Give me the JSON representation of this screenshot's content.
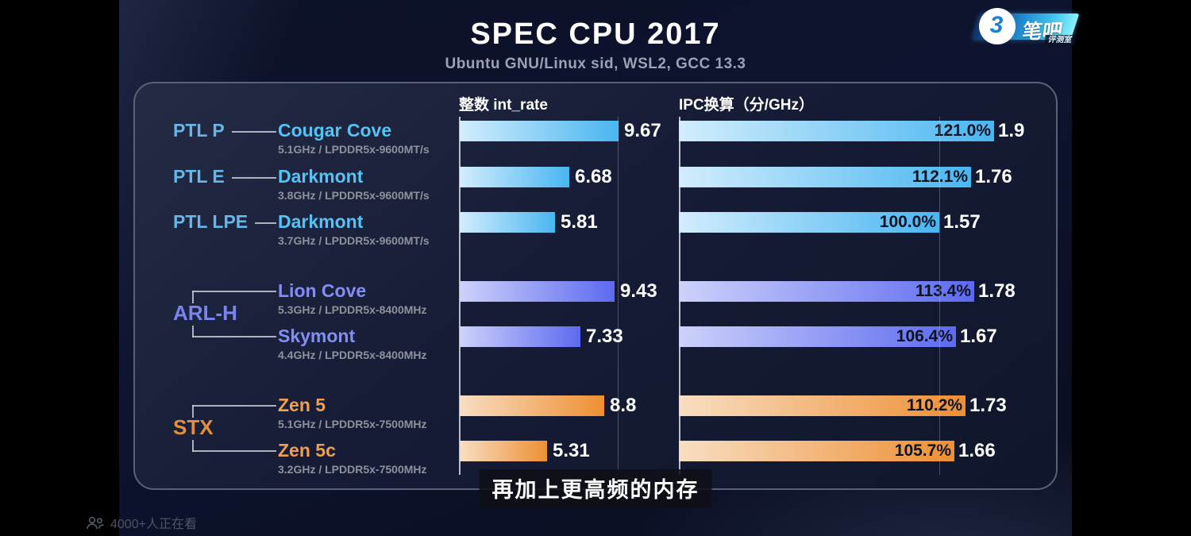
{
  "header": {
    "title": "SPEC CPU 2017",
    "subtitle": "Ubuntu GNU/Linux sid, WSL2, GCC 13.3"
  },
  "logo": {
    "glyph": "3",
    "brand": "笔吧",
    "brand_sub": "评测室"
  },
  "chart_data": {
    "type": "bar",
    "columns": [
      {
        "id": "int_rate",
        "header": "整数 int_rate"
      },
      {
        "id": "ipc",
        "header": "IPC换算（分/GHz）"
      }
    ],
    "axes": {
      "int_rate_reference_gridline": 9.67,
      "ipc_reference_gridline_pct": 100.0
    },
    "groups": [
      {
        "label": "PTL P",
        "shape": "single",
        "label_color": "#66b6e8",
        "core_color": "#54c3f5",
        "bar_from": "#d2edfd",
        "bar_to": "#49b6f0",
        "rows": [
          {
            "core": "Cougar Cove",
            "spec": "5.1GHz / LPDDR5x-9600MT/s",
            "int_rate": 9.67,
            "int_rate_label": "9.67",
            "ipc_pct": 121.0,
            "ipc_pct_label": "121.0%",
            "ipc_label": "1.9"
          }
        ]
      },
      {
        "label": "PTL E",
        "shape": "single",
        "label_color": "#66b6e8",
        "core_color": "#54c3f5",
        "bar_from": "#d2edfd",
        "bar_to": "#49b6f0",
        "rows": [
          {
            "core": "Darkmont",
            "spec": "3.8GHz / LPDDR5x-9600MT/s",
            "int_rate": 6.68,
            "int_rate_label": "6.68",
            "ipc_pct": 112.1,
            "ipc_pct_label": "112.1%",
            "ipc_label": "1.76"
          }
        ]
      },
      {
        "label": "PTL LPE",
        "shape": "single",
        "label_color": "#66b6e8",
        "core_color": "#54c3f5",
        "bar_from": "#d2edfd",
        "bar_to": "#49b6f0",
        "rows": [
          {
            "core": "Darkmont",
            "spec": "3.7GHz / LPDDR5x-9600MT/s",
            "int_rate": 5.81,
            "int_rate_label": "5.81",
            "ipc_pct": 100.0,
            "ipc_pct_label": "100.0%",
            "ipc_label": "1.57"
          }
        ]
      },
      {
        "label": "ARL-H",
        "shape": "bracket",
        "label_color": "#7a84ef",
        "core_color": "#838ef5",
        "bar_from": "#cdd2fa",
        "bar_to": "#5d6af0",
        "rows": [
          {
            "core": "Lion Cove",
            "spec": "5.3GHz / LPDDR5x-8400MHz",
            "int_rate": 9.43,
            "int_rate_label": "9.43",
            "ipc_pct": 113.4,
            "ipc_pct_label": "113.4%",
            "ipc_label": "1.78"
          },
          {
            "core": "Skymont",
            "spec": "4.4GHz / LPDDR5x-8400MHz",
            "int_rate": 7.33,
            "int_rate_label": "7.33",
            "ipc_pct": 106.4,
            "ipc_pct_label": "106.4%",
            "ipc_label": "1.67"
          }
        ]
      },
      {
        "label": "STX",
        "shape": "bracket",
        "label_color": "#e09040",
        "core_color": "#efa04f",
        "bar_from": "#f8dec2",
        "bar_to": "#ee8f33",
        "rows": [
          {
            "core": "Zen 5",
            "spec": "5.1GHz / LPDDR5x-7500MHz",
            "int_rate": 8.8,
            "int_rate_label": "8.8",
            "ipc_pct": 110.2,
            "ipc_pct_label": "110.2%",
            "ipc_label": "1.73"
          },
          {
            "core": "Zen 5c",
            "spec": "3.2GHz / LPDDR5x-7500MHz",
            "int_rate": 5.31,
            "int_rate_label": "5.31",
            "ipc_pct": 105.7,
            "ipc_pct_label": "105.7%",
            "ipc_label": "1.66"
          }
        ]
      }
    ]
  },
  "caption": "再加上更高频的内存",
  "status_bar": {
    "viewers": "4000+人正在看"
  }
}
